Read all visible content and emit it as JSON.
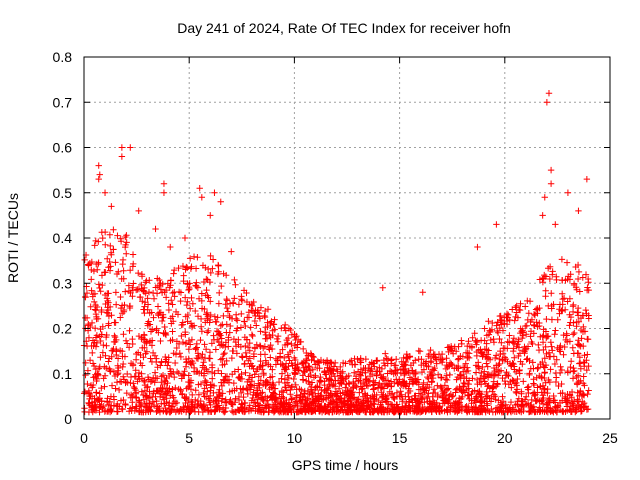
{
  "chart_data": {
    "type": "scatter",
    "title": "Day 241 of 2024, Rate Of TEC Index for receiver hofn",
    "xlabel": "GPS time / hours",
    "ylabel": "ROTI / TECUs",
    "xlim": [
      0,
      25
    ],
    "ylim": [
      0,
      0.8
    ],
    "x_ticks": [
      "0",
      "5",
      "10",
      "15",
      "20",
      "25"
    ],
    "y_ticks": [
      "0",
      "0.1",
      "0.2",
      "0.3",
      "0.4",
      "0.5",
      "0.6",
      "0.7",
      "0.8"
    ],
    "grid": true,
    "marker": "+",
    "color": "#ff0000",
    "series": [
      {
        "name": "ROTI",
        "envelope_x": [
          0,
          1,
          2,
          3,
          4,
          5,
          6,
          7,
          8,
          9,
          10,
          11,
          12,
          13,
          14,
          15,
          16,
          17,
          18,
          19,
          20,
          21,
          22,
          23,
          24
        ],
        "envelope_max": [
          0.35,
          0.42,
          0.4,
          0.3,
          0.3,
          0.35,
          0.35,
          0.3,
          0.25,
          0.22,
          0.18,
          0.12,
          0.11,
          0.12,
          0.13,
          0.13,
          0.14,
          0.14,
          0.16,
          0.2,
          0.22,
          0.25,
          0.32,
          0.35,
          0.3
        ],
        "outliers": [
          [
            0.7,
            0.53
          ],
          [
            0.7,
            0.56
          ],
          [
            0.75,
            0.54
          ],
          [
            1.0,
            0.5
          ],
          [
            1.3,
            0.47
          ],
          [
            1.8,
            0.6
          ],
          [
            1.8,
            0.58
          ],
          [
            2.2,
            0.6
          ],
          [
            2.6,
            0.46
          ],
          [
            3.4,
            0.42
          ],
          [
            3.8,
            0.52
          ],
          [
            3.8,
            0.5
          ],
          [
            4.1,
            0.38
          ],
          [
            4.8,
            0.4
          ],
          [
            5.5,
            0.51
          ],
          [
            5.6,
            0.49
          ],
          [
            6.0,
            0.45
          ],
          [
            6.2,
            0.5
          ],
          [
            6.5,
            0.48
          ],
          [
            7.0,
            0.37
          ],
          [
            14.2,
            0.29
          ],
          [
            16.1,
            0.28
          ],
          [
            18.7,
            0.38
          ],
          [
            19.6,
            0.43
          ],
          [
            21.8,
            0.45
          ],
          [
            21.9,
            0.49
          ],
          [
            22.0,
            0.7
          ],
          [
            22.1,
            0.72
          ],
          [
            22.2,
            0.55
          ],
          [
            22.2,
            0.52
          ],
          [
            22.4,
            0.43
          ],
          [
            23.0,
            0.5
          ],
          [
            23.5,
            0.46
          ],
          [
            23.9,
            0.53
          ]
        ]
      }
    ]
  }
}
